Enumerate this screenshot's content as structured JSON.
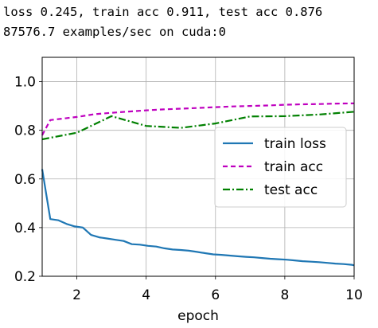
{
  "log": {
    "line1": "loss 0.245, train acc 0.911, test acc 0.876",
    "line2": "87576.7 examples/sec on cuda:0"
  },
  "chart_data": {
    "type": "line",
    "title": "",
    "xlabel": "epoch",
    "ylabel": "",
    "xlim": [
      1,
      10
    ],
    "ylim": [
      0.2,
      1.1
    ],
    "xticks": [
      2,
      4,
      6,
      8,
      10
    ],
    "yticks": [
      0.2,
      0.4,
      0.6,
      0.8,
      1.0
    ],
    "xtick_labels": [
      "2",
      "4",
      "6",
      "8",
      "10"
    ],
    "ytick_labels": [
      "0.2",
      "0.4",
      "0.6",
      "0.8",
      "1.0"
    ],
    "grid": true,
    "legend_position": "center-right",
    "series": [
      {
        "name": "train loss",
        "color": "#1f77b4",
        "style": "solid",
        "x": [
          1.0,
          1.235,
          1.47,
          1.705,
          1.94,
          2.175,
          2.41,
          2.645,
          2.88,
          3.115,
          3.35,
          3.585,
          3.82,
          4.055,
          4.29,
          4.525,
          4.76,
          4.995,
          5.23,
          5.465,
          5.7,
          5.935,
          6.17,
          6.405,
          6.64,
          6.875,
          7.11,
          7.345,
          7.58,
          7.815,
          8.05,
          8.285,
          8.52,
          8.755,
          8.99,
          9.225,
          9.46,
          9.695,
          9.93,
          10.0
        ],
        "y": [
          0.64,
          0.435,
          0.43,
          0.415,
          0.405,
          0.4,
          0.37,
          0.36,
          0.355,
          0.35,
          0.345,
          0.332,
          0.33,
          0.325,
          0.322,
          0.315,
          0.31,
          0.308,
          0.305,
          0.3,
          0.295,
          0.29,
          0.288,
          0.285,
          0.282,
          0.28,
          0.278,
          0.275,
          0.272,
          0.27,
          0.268,
          0.265,
          0.262,
          0.26,
          0.258,
          0.255,
          0.252,
          0.25,
          0.247,
          0.245
        ]
      },
      {
        "name": "train acc",
        "color": "#bf00bf",
        "style": "dashed",
        "x": [
          1,
          1.235,
          2,
          2.5,
          3,
          3.5,
          4,
          4.5,
          5,
          5.5,
          6,
          6.5,
          7,
          7.5,
          8,
          8.5,
          9,
          9.5,
          10
        ],
        "y": [
          0.78,
          0.842,
          0.855,
          0.866,
          0.872,
          0.877,
          0.882,
          0.886,
          0.889,
          0.892,
          0.895,
          0.898,
          0.9,
          0.902,
          0.905,
          0.907,
          0.908,
          0.91,
          0.911
        ]
      },
      {
        "name": "test acc",
        "color": "#008000",
        "style": "dashdot",
        "x": [
          1,
          2,
          3,
          4,
          5,
          6,
          7,
          8,
          9,
          10
        ],
        "y": [
          0.763,
          0.79,
          0.858,
          0.818,
          0.81,
          0.828,
          0.857,
          0.858,
          0.865,
          0.876
        ]
      }
    ]
  }
}
